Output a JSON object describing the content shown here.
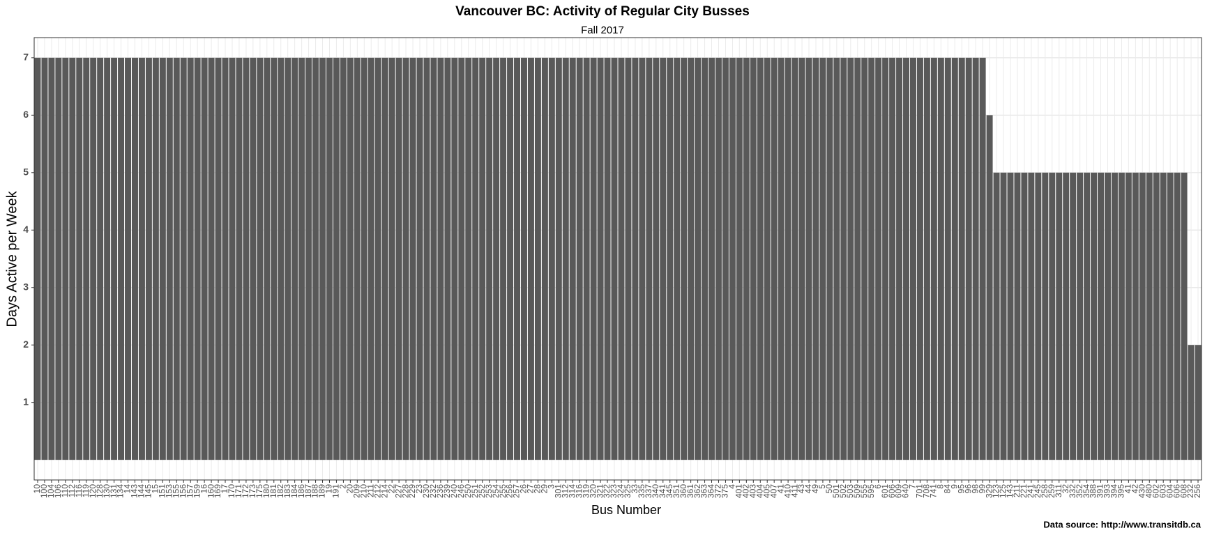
{
  "chart_data": {
    "type": "bar",
    "title": "Vancouver BC: Activity of Regular City Busses",
    "subtitle": "Fall 2017",
    "x_label": "Bus Number",
    "y_label": "Days Active per Week",
    "caption": "Data source: http://www.transitdb.ca",
    "color": "#595959",
    "grid": true,
    "categories": [
      "10",
      "100",
      "104",
      "106",
      "110",
      "112",
      "116",
      "119",
      "120",
      "128",
      "130",
      "131",
      "134",
      "14",
      "143",
      "144",
      "145",
      "15",
      "151",
      "153",
      "155",
      "156",
      "157",
      "159",
      "16",
      "160",
      "169",
      "17",
      "170",
      "171",
      "172",
      "173",
      "175",
      "180",
      "181",
      "182",
      "183",
      "184",
      "186",
      "187",
      "188",
      "189",
      "19",
      "191",
      "2",
      "20",
      "209",
      "210",
      "211",
      "212",
      "214",
      "22",
      "227",
      "228",
      "229",
      "23",
      "230",
      "232",
      "236",
      "239",
      "240",
      "246",
      "250",
      "251",
      "252",
      "253",
      "254",
      "255",
      "256",
      "257",
      "26",
      "27",
      "28",
      "29",
      "3",
      "301",
      "312",
      "314",
      "316",
      "319",
      "320",
      "321",
      "322",
      "323",
      "324",
      "325",
      "33",
      "335",
      "337",
      "340",
      "341",
      "345",
      "351",
      "360",
      "361",
      "362",
      "363",
      "364",
      "372",
      "375",
      "4",
      "401",
      "402",
      "403",
      "404",
      "405",
      "407",
      "41",
      "410",
      "411",
      "43",
      "44",
      "49",
      "5",
      "50",
      "501",
      "502",
      "503",
      "509",
      "555",
      "595",
      "6",
      "601",
      "606",
      "609",
      "640",
      "7",
      "701",
      "708",
      "741",
      "8",
      "84",
      "9",
      "95",
      "96",
      "98",
      "99",
      "329",
      "123",
      "125",
      "143",
      "211",
      "221",
      "241",
      "245",
      "258",
      "259",
      "311",
      "32",
      "332",
      "352",
      "354",
      "388",
      "391",
      "393",
      "394",
      "395",
      "41",
      "42",
      "430",
      "480",
      "602",
      "603",
      "604",
      "606",
      "608",
      "232",
      "256"
    ],
    "values": [
      7,
      7,
      7,
      7,
      7,
      7,
      7,
      7,
      7,
      7,
      7,
      7,
      7,
      7,
      7,
      7,
      7,
      7,
      7,
      7,
      7,
      7,
      7,
      7,
      7,
      7,
      7,
      7,
      7,
      7,
      7,
      7,
      7,
      7,
      7,
      7,
      7,
      7,
      7,
      7,
      7,
      7,
      7,
      7,
      7,
      7,
      7,
      7,
      7,
      7,
      7,
      7,
      7,
      7,
      7,
      7,
      7,
      7,
      7,
      7,
      7,
      7,
      7,
      7,
      7,
      7,
      7,
      7,
      7,
      7,
      7,
      7,
      7,
      7,
      7,
      7,
      7,
      7,
      7,
      7,
      7,
      7,
      7,
      7,
      7,
      7,
      7,
      7,
      7,
      7,
      7,
      7,
      7,
      7,
      7,
      7,
      7,
      7,
      7,
      7,
      7,
      7,
      7,
      7,
      7,
      7,
      7,
      7,
      7,
      7,
      7,
      7,
      7,
      7,
      7,
      7,
      7,
      7,
      7,
      7,
      7,
      7,
      7,
      7,
      7,
      7,
      7,
      7,
      7,
      7,
      7,
      7,
      7,
      7,
      7,
      7,
      7,
      6,
      5,
      5,
      5,
      5,
      5,
      5,
      5,
      5,
      5,
      5,
      5,
      5,
      5,
      5,
      5,
      5,
      5,
      5,
      5,
      5,
      5,
      5,
      5,
      5,
      5,
      5,
      5,
      5,
      2,
      2
    ],
    "ylim": [
      -0.35,
      7.35
    ],
    "yticks": [
      1,
      2,
      3,
      4,
      5,
      6,
      7
    ]
  }
}
